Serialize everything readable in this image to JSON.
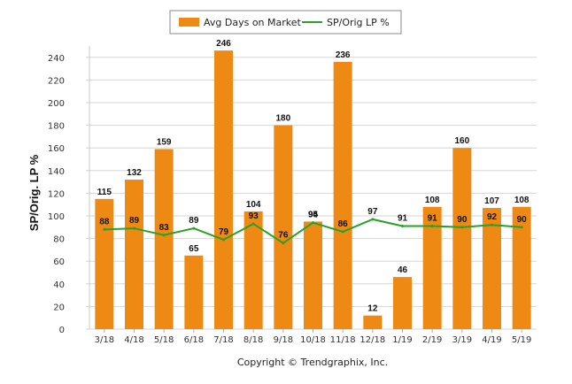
{
  "chart_data": {
    "type": "bar",
    "categories": [
      "3/18",
      "4/18",
      "5/18",
      "6/18",
      "7/18",
      "8/18",
      "9/18",
      "10/18",
      "11/18",
      "12/18",
      "1/19",
      "2/19",
      "3/19",
      "4/19",
      "5/19"
    ],
    "series": [
      {
        "name": "Avg Days on Market",
        "type": "bar",
        "color": "#ee8a14",
        "values": [
          115,
          132,
          159,
          65,
          246,
          104,
          180,
          95,
          236,
          12,
          46,
          108,
          160,
          107,
          108
        ]
      },
      {
        "name": "SP/Orig LP %",
        "type": "line",
        "color": "#2aa02a",
        "values": [
          88,
          89,
          83,
          89,
          79,
          93,
          76,
          94,
          86,
          97,
          91,
          91,
          90,
          92,
          90
        ]
      }
    ],
    "ylabel": "SP/Orig. LP %",
    "xlabel": "",
    "ylim": [
      0,
      250
    ],
    "yticks": [
      0,
      20,
      40,
      60,
      80,
      100,
      120,
      140,
      160,
      180,
      200,
      220,
      240
    ],
    "grid": true,
    "legend_position": "top-center"
  },
  "footer": "Copyright © Trendgraphix, Inc."
}
